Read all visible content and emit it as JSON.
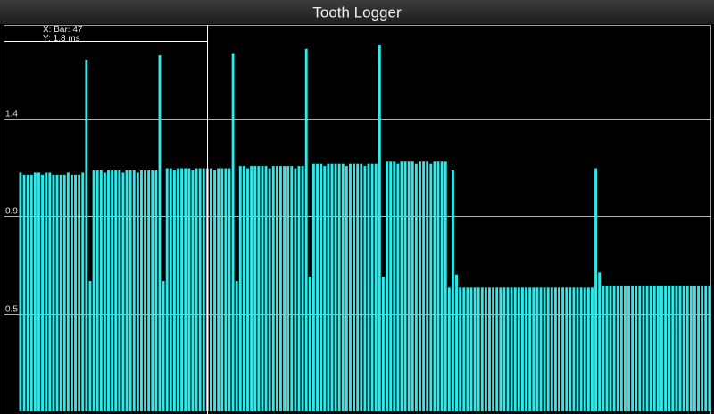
{
  "chart_data": {
    "type": "bar",
    "title": "Tooth Logger",
    "annotations": [
      "X: Bar: 47",
      "Y: 1.8 ms"
    ],
    "color": "#33e8e8",
    "grid": true,
    "ylim": [
      0,
      1.78
    ],
    "yticks": [
      {
        "value": 1.35,
        "label": "1.4"
      },
      {
        "value": 0.9,
        "label": "0.9"
      },
      {
        "value": 0.45,
        "label": "0.5"
      }
    ],
    "values": [
      1.1,
      1.09,
      1.09,
      1.09,
      1.1,
      1.1,
      1.09,
      1.1,
      1.1,
      1.09,
      1.09,
      1.09,
      1.09,
      1.1,
      1.09,
      1.09,
      1.09,
      1.1,
      1.62,
      0.6,
      1.11,
      1.11,
      1.11,
      1.1,
      1.11,
      1.11,
      1.11,
      1.11,
      1.1,
      1.11,
      1.11,
      1.11,
      1.1,
      1.11,
      1.11,
      1.11,
      1.11,
      1.11,
      1.64,
      0.6,
      1.12,
      1.12,
      1.11,
      1.12,
      1.12,
      1.12,
      1.12,
      1.11,
      1.12,
      1.12,
      1.12,
      1.12,
      1.12,
      1.11,
      1.12,
      1.12,
      1.12,
      1.12,
      1.65,
      0.6,
      1.13,
      1.13,
      1.12,
      1.13,
      1.13,
      1.13,
      1.13,
      1.13,
      1.12,
      1.13,
      1.13,
      1.13,
      1.13,
      1.13,
      1.13,
      1.12,
      1.13,
      1.13,
      1.67,
      0.62,
      1.14,
      1.14,
      1.14,
      1.13,
      1.14,
      1.14,
      1.14,
      1.14,
      1.14,
      1.13,
      1.14,
      1.14,
      1.14,
      1.14,
      1.13,
      1.14,
      1.14,
      1.14,
      1.69,
      0.62,
      1.15,
      1.15,
      1.15,
      1.14,
      1.15,
      1.15,
      1.15,
      1.15,
      1.14,
      1.15,
      1.15,
      1.15,
      1.14,
      1.15,
      1.15,
      1.15,
      1.15,
      0.57,
      1.11,
      0.63,
      0.57,
      0.57,
      0.57,
      0.57,
      0.57,
      0.57,
      0.57,
      0.57,
      0.57,
      0.57,
      0.57,
      0.57,
      0.57,
      0.57,
      0.57,
      0.57,
      0.57,
      0.57,
      0.57,
      0.57,
      0.57,
      0.57,
      0.57,
      0.57,
      0.57,
      0.57,
      0.57,
      0.57,
      0.57,
      0.57,
      0.57,
      0.57,
      0.57,
      0.57,
      0.57,
      0.57,
      0.57,
      1.12,
      0.64,
      0.58,
      0.58,
      0.58,
      0.58,
      0.58,
      0.58,
      0.58,
      0.58,
      0.58,
      0.58,
      0.58,
      0.58,
      0.58,
      0.58,
      0.58,
      0.58,
      0.58,
      0.58,
      0.58,
      0.58,
      0.58,
      0.58,
      0.58,
      0.58,
      0.58,
      0.58,
      0.58,
      0.58,
      0.58,
      0.58
    ]
  }
}
